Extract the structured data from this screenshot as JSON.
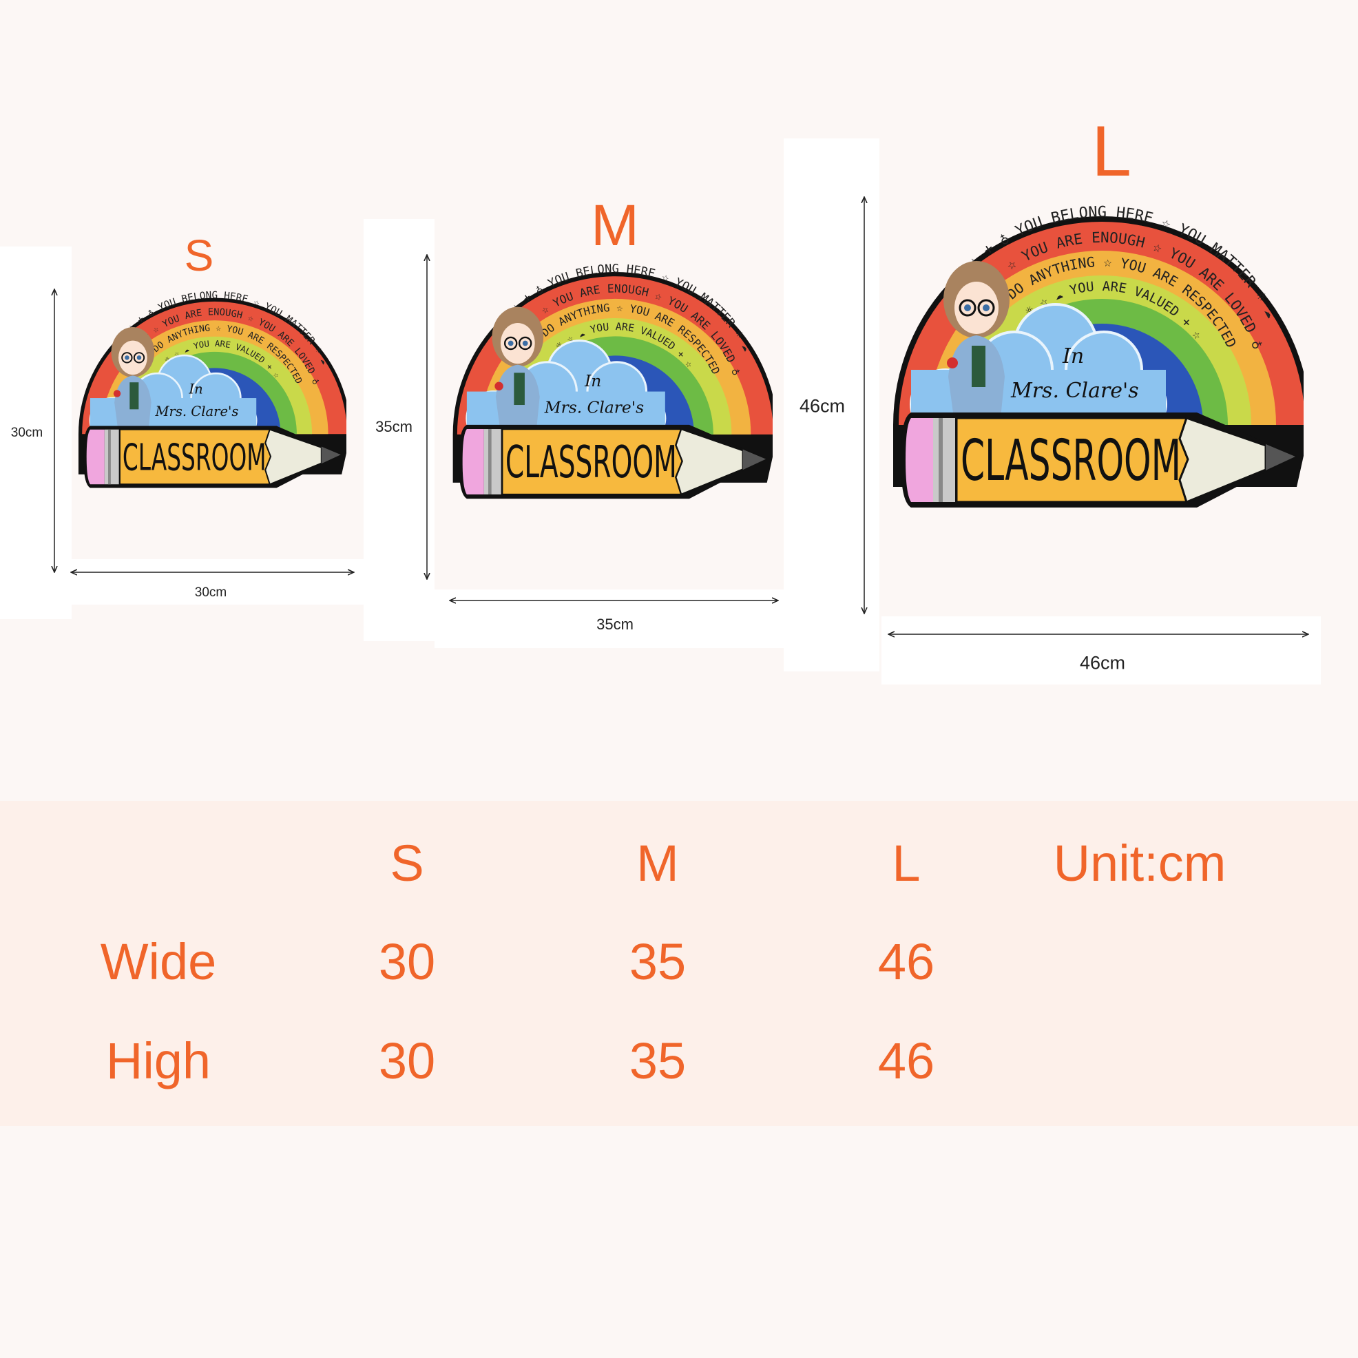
{
  "accent_color": "#f0652a",
  "sizes": [
    {
      "label": "S",
      "width_label": "30cm",
      "height_label": "30cm"
    },
    {
      "label": "M",
      "width_label": "35cm",
      "height_label": "35cm"
    },
    {
      "label": "L",
      "width_label": "46cm",
      "height_label": "46cm"
    }
  ],
  "product": {
    "ring1": "☆ + ♁ YOU BELONG HERE ☆ YOU MATTER ☼ ☁",
    "ring2": "☁ ☼ ☆ YOU ARE ENOUGH ☆ YOU ARE LOVED ♁",
    "ring3": "YOU CAN DO ANYTHING ☆ YOU ARE RESPECTED",
    "ring4": "☼ ☆ ☁ YOU ARE VALUED + ☆",
    "line1": "In",
    "line2": "Mrs. Clare's",
    "main": "CLASSROOM"
  },
  "table": {
    "headers": [
      "S",
      "M",
      "L"
    ],
    "unit": "Unit:cm",
    "rows": [
      {
        "label": "Wide",
        "values": [
          "30",
          "35",
          "46"
        ]
      },
      {
        "label": "High",
        "values": [
          "30",
          "35",
          "46"
        ]
      }
    ]
  }
}
